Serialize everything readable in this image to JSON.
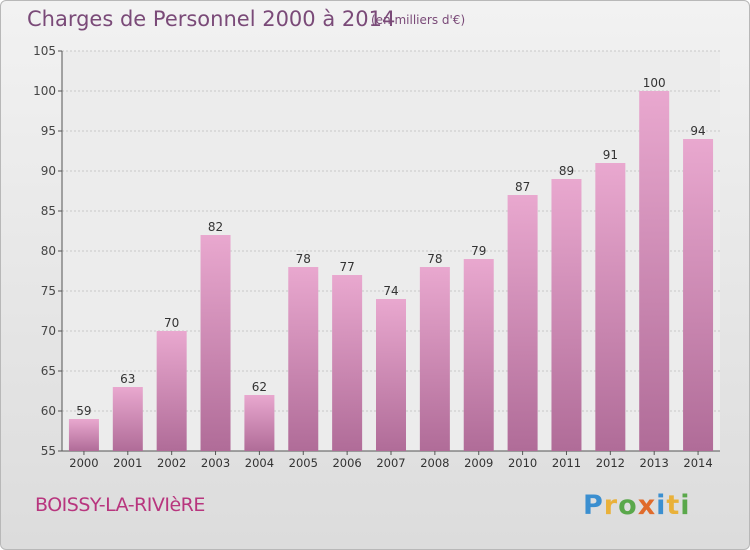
{
  "header": {
    "title": "Charges de Personnel 2000 à 2014",
    "subtitle": "(en milliers d'€)"
  },
  "footer": {
    "city": "BOISSY-LA-RIVIèRE",
    "logo": "Proxiti"
  },
  "colors": {
    "bar_light": "#e9a8cf",
    "bar_dark": "#b06c98",
    "title": "#7a4a78",
    "city": "#b8357e"
  },
  "chart_data": {
    "type": "bar",
    "categories": [
      "2000",
      "2001",
      "2002",
      "2003",
      "2004",
      "2005",
      "2006",
      "2007",
      "2008",
      "2009",
      "2010",
      "2011",
      "2012",
      "2013",
      "2014"
    ],
    "values": [
      59,
      63,
      70,
      82,
      62,
      78,
      77,
      74,
      78,
      79,
      87,
      89,
      91,
      100,
      94
    ],
    "yticks": [
      55,
      60,
      65,
      70,
      75,
      80,
      85,
      90,
      95,
      100,
      105
    ],
    "ylim": [
      55,
      105
    ],
    "grid": true,
    "data_labels": true
  }
}
